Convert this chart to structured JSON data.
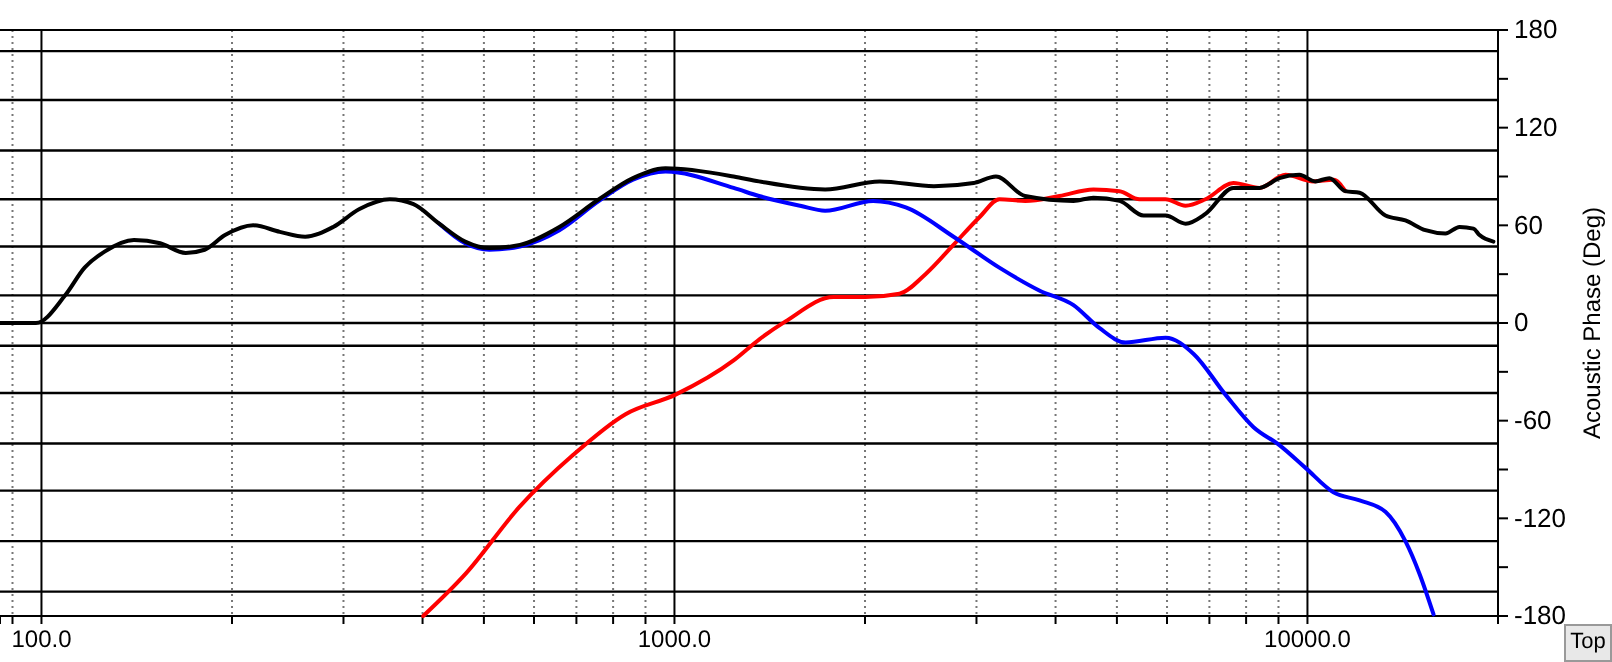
{
  "chart_data": {
    "type": "line",
    "y2label": "Acoustic Phase (Deg)",
    "log": "x",
    "grid": "x",
    "xlim": [
      86,
      20000
    ],
    "xticks": [
      {
        "value": 90,
        "label": null
      },
      {
        "value": 100,
        "label": "100.0"
      },
      {
        "value": 200,
        "label": null
      },
      {
        "value": 300,
        "label": null
      },
      {
        "value": 400,
        "label": null
      },
      {
        "value": 500,
        "label": null
      },
      {
        "value": 600,
        "label": null
      },
      {
        "value": 700,
        "label": null
      },
      {
        "value": 800,
        "label": null
      },
      {
        "value": 900,
        "label": null
      },
      {
        "value": 1000,
        "label": "1000.0"
      },
      {
        "value": 2000,
        "label": null
      },
      {
        "value": 3000,
        "label": null
      },
      {
        "value": 4000,
        "label": null
      },
      {
        "value": 5000,
        "label": null
      },
      {
        "value": 6000,
        "label": null
      },
      {
        "value": 7000,
        "label": null
      },
      {
        "value": 8000,
        "label": null
      },
      {
        "value": 9000,
        "label": null
      },
      {
        "value": 10000,
        "label": "10000.0"
      }
    ],
    "y2lim": [
      -180,
      180
    ],
    "y2ticks": [
      180,
      {
        "value": 150,
        "label": null
      },
      120,
      {
        "value": 90,
        "label": null
      },
      60,
      {
        "value": 30,
        "label": null
      },
      0,
      {
        "value": -30,
        "label": null
      },
      -60,
      {
        "value": -90,
        "label": null
      },
      -120,
      {
        "value": -150,
        "label": null
      },
      -180
    ],
    "ref_lines": [
      {
        "axis": "y2",
        "value": 0,
        "color": "#000000"
      },
      {
        "axis": "y2",
        "value": 167,
        "color": "#000000"
      },
      {
        "axis": "y2",
        "value": 137,
        "color": "#000000"
      },
      {
        "axis": "y2",
        "value": 106,
        "color": "#000000"
      },
      {
        "axis": "y2",
        "value": 76,
        "color": "#000000"
      },
      {
        "axis": "y2",
        "value": 47,
        "color": "#000000"
      },
      {
        "axis": "y2",
        "value": 17,
        "color": "#000000"
      },
      {
        "axis": "y2",
        "value": -14,
        "color": "#000000"
      },
      {
        "axis": "y2",
        "value": -43,
        "color": "#000000"
      },
      {
        "axis": "y2",
        "value": -74,
        "color": "#000000"
      },
      {
        "axis": "y2",
        "value": -103,
        "color": "#000000"
      },
      {
        "axis": "y2",
        "value": -134,
        "color": "#000000"
      },
      {
        "axis": "y2",
        "value": -165,
        "color": "#000000"
      }
    ],
    "annotations": [
      "Top"
    ],
    "series": [
      {
        "color": "#ff0000",
        "axis": "y2",
        "x": [
          401,
          468,
          569,
          692,
          837,
          1004,
          1240,
          1362,
          1498,
          1784,
          2003,
          2267,
          2492,
          2759,
          3033,
          3262,
          3584,
          4057,
          4591,
          5047,
          5428,
          5967,
          6418,
          6902,
          7640,
          8400,
          9232,
          10220,
          10990,
          11480
        ],
        "values": [
          -180,
          -154,
          -113,
          -81,
          -56,
          -44,
          -23,
          -10,
          1,
          16,
          16,
          18,
          30,
          48,
          65,
          76,
          75,
          78,
          82,
          81,
          76,
          76,
          72,
          76,
          86,
          83,
          91,
          87,
          88,
          81
        ]
      },
      {
        "color": "#0000ff",
        "axis": "y2",
        "x": [
          425,
          467,
          510,
          570,
          658,
          760,
          860,
          968,
          1240,
          1360,
          1580,
          1730,
          2060,
          2320,
          2760,
          3260,
          3770,
          4270,
          4690,
          5160,
          5970,
          6610,
          7420,
          8220,
          9030,
          9930,
          10990,
          12090,
          13280,
          14280,
          15030,
          15820
        ],
        "values": [
          61,
          49,
          45,
          47,
          57,
          75,
          88,
          93,
          83,
          78,
          72,
          69,
          75,
          71,
          53,
          34,
          20,
          11,
          -3,
          -12,
          -9,
          -19,
          -44,
          -64,
          -75,
          -89,
          -104,
          -109,
          -116,
          -134,
          -154,
          -179
        ]
      },
      {
        "color": "#000000",
        "axis": "y2",
        "x": [
          86,
          98,
          109,
          117,
          126,
          140,
          154,
          169,
          181,
          195,
          216,
          238,
          261,
          289,
          318,
          355,
          387,
          425,
          467,
          510,
          570,
          658,
          760,
          860,
          968,
          1240,
          1360,
          1730,
          2110,
          2570,
          2970,
          3220,
          3580,
          4270,
          4590,
          5050,
          5510,
          5970,
          6420,
          6900,
          7640,
          8400,
          9030,
          9710,
          10290,
          10830,
          11480,
          12090,
          13280,
          14280,
          15360,
          16520,
          17390,
          18290,
          18700,
          19670
        ],
        "values": [
          0,
          0,
          17,
          34,
          44,
          51,
          49,
          43,
          45,
          54,
          60,
          56,
          53,
          59,
          70,
          76,
          73,
          61,
          50,
          46,
          48,
          59,
          76,
          89,
          95,
          90,
          87,
          82,
          87,
          84,
          86,
          90,
          78,
          75,
          77,
          75,
          66,
          66,
          61,
          67,
          83,
          83,
          89,
          91,
          87,
          89,
          81,
          80,
          66,
          63,
          57,
          55,
          59,
          58,
          54,
          50
        ]
      }
    ]
  }
}
